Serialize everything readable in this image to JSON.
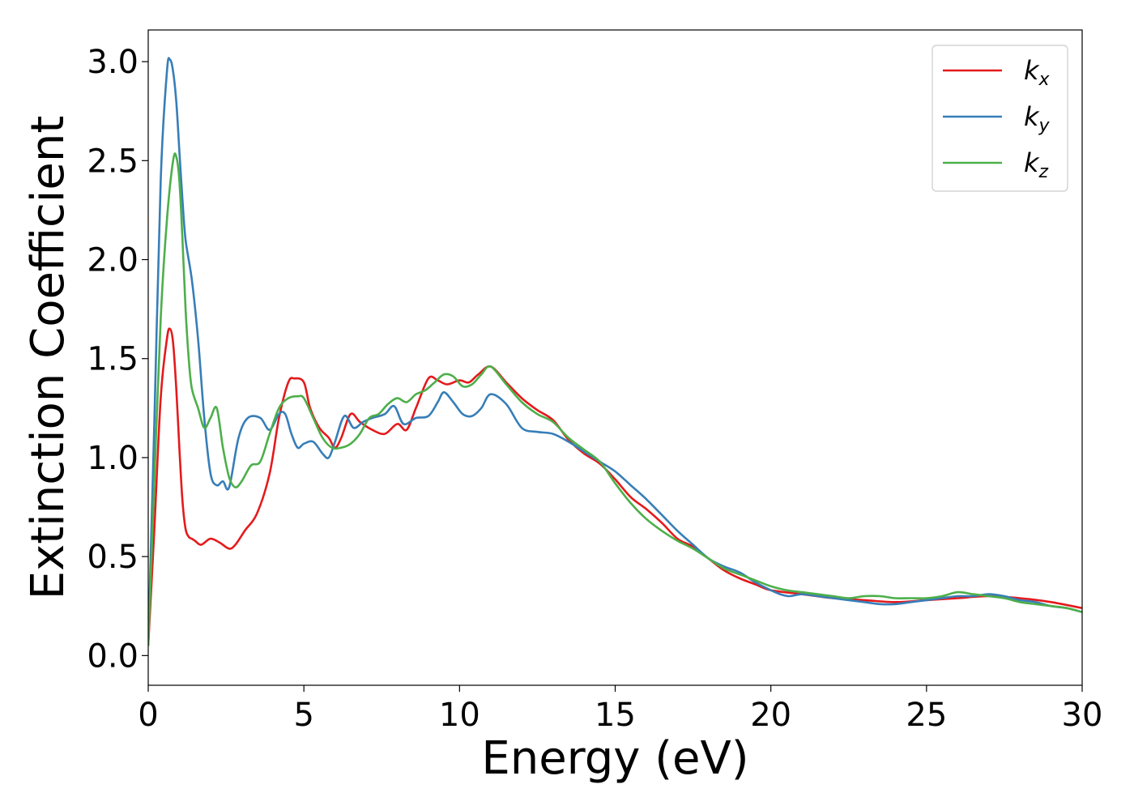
{
  "chart_data": {
    "type": "line",
    "title": "",
    "xlabel": "Energy (eV)",
    "ylabel": "Extinction Coefficient",
    "xlim": [
      0,
      30
    ],
    "ylim": [
      -0.15,
      3.16
    ],
    "xticks": [
      0,
      5,
      10,
      15,
      20,
      25,
      30
    ],
    "xtick_labels": [
      "0",
      "5",
      "10",
      "15",
      "20",
      "25",
      "30"
    ],
    "yticks": [
      0.0,
      0.5,
      1.0,
      1.5,
      2.0,
      2.5,
      3.0
    ],
    "ytick_labels": [
      "0.0",
      "0.5",
      "1.0",
      "1.5",
      "2.0",
      "2.5",
      "3.0"
    ],
    "grid": false,
    "legend_position": "top-right",
    "series": [
      {
        "name": "k",
        "subscript": "x",
        "color": "#e41a1c",
        "x": [
          0,
          0.2,
          0.4,
          0.6,
          0.7,
          0.8,
          0.9,
          1.0,
          1.1,
          1.2,
          1.3,
          1.4,
          1.5,
          1.7,
          2.0,
          2.3,
          2.6,
          2.8,
          3.1,
          3.5,
          3.9,
          4.2,
          4.5,
          4.7,
          5.0,
          5.2,
          5.5,
          5.8,
          6.0,
          6.2,
          6.5,
          6.8,
          7.2,
          7.6,
          8.0,
          8.3,
          8.6,
          9.0,
          9.3,
          9.6,
          10.0,
          10.3,
          10.6,
          11.0,
          11.5,
          12.0,
          12.5,
          13.0,
          13.5,
          14.0,
          14.5,
          15.0,
          15.5,
          16.0,
          16.5,
          17.0,
          17.5,
          18.0,
          18.5,
          19.0,
          19.5,
          20.0,
          21.0,
          22.0,
          23.0,
          24.0,
          25.0,
          26.0,
          27.0,
          28.0,
          29.0,
          30.0
        ],
        "y": [
          0.05,
          0.65,
          1.3,
          1.6,
          1.65,
          1.58,
          1.35,
          1.05,
          0.78,
          0.64,
          0.6,
          0.59,
          0.58,
          0.56,
          0.59,
          0.57,
          0.54,
          0.56,
          0.63,
          0.72,
          0.92,
          1.2,
          1.38,
          1.4,
          1.38,
          1.25,
          1.15,
          1.1,
          1.05,
          1.1,
          1.22,
          1.18,
          1.14,
          1.12,
          1.17,
          1.14,
          1.25,
          1.4,
          1.39,
          1.37,
          1.39,
          1.38,
          1.42,
          1.46,
          1.38,
          1.3,
          1.24,
          1.19,
          1.09,
          1.02,
          0.97,
          0.89,
          0.8,
          0.74,
          0.67,
          0.59,
          0.55,
          0.49,
          0.43,
          0.39,
          0.36,
          0.33,
          0.31,
          0.29,
          0.28,
          0.27,
          0.28,
          0.29,
          0.3,
          0.29,
          0.27,
          0.24
        ]
      },
      {
        "name": "k",
        "subscript": "y",
        "color": "#377eb8",
        "x": [
          0,
          0.2,
          0.4,
          0.6,
          0.7,
          0.8,
          0.9,
          1.0,
          1.1,
          1.2,
          1.4,
          1.6,
          1.8,
          2.0,
          2.2,
          2.4,
          2.6,
          2.9,
          3.2,
          3.6,
          3.9,
          4.2,
          4.4,
          4.6,
          4.8,
          5.0,
          5.3,
          5.6,
          5.8,
          6.0,
          6.3,
          6.6,
          6.9,
          7.2,
          7.6,
          7.9,
          8.2,
          8.6,
          9.0,
          9.3,
          9.5,
          9.8,
          10.1,
          10.4,
          10.7,
          11.0,
          11.5,
          12.0,
          12.5,
          13.0,
          13.5,
          14.0,
          14.5,
          15.0,
          15.5,
          16.0,
          16.5,
          17.0,
          17.5,
          18.0,
          18.5,
          19.0,
          19.5,
          20.0,
          20.3,
          20.6,
          21.0,
          21.5,
          22.0,
          22.5,
          23.0,
          23.5,
          24.0,
          24.5,
          25.0,
          25.5,
          26.0,
          26.5,
          27.0,
          27.5,
          28.0,
          28.5,
          29.0,
          29.5,
          30.0
        ],
        "y": [
          0.05,
          1.2,
          2.4,
          2.95,
          3.01,
          2.95,
          2.8,
          2.55,
          2.3,
          2.1,
          1.9,
          1.6,
          1.2,
          0.92,
          0.86,
          0.88,
          0.85,
          1.1,
          1.2,
          1.2,
          1.14,
          1.22,
          1.22,
          1.12,
          1.05,
          1.07,
          1.08,
          1.02,
          1.0,
          1.08,
          1.21,
          1.15,
          1.18,
          1.2,
          1.22,
          1.26,
          1.17,
          1.2,
          1.21,
          1.28,
          1.33,
          1.28,
          1.22,
          1.21,
          1.25,
          1.32,
          1.27,
          1.15,
          1.13,
          1.12,
          1.08,
          1.03,
          0.98,
          0.93,
          0.86,
          0.79,
          0.71,
          0.63,
          0.56,
          0.49,
          0.45,
          0.42,
          0.37,
          0.33,
          0.31,
          0.3,
          0.31,
          0.3,
          0.29,
          0.28,
          0.27,
          0.26,
          0.26,
          0.27,
          0.28,
          0.29,
          0.3,
          0.3,
          0.31,
          0.3,
          0.28,
          0.27,
          0.25,
          0.24,
          0.22
        ]
      },
      {
        "name": "k",
        "subscript": "z",
        "color": "#4daf4a",
        "x": [
          0,
          0.2,
          0.4,
          0.6,
          0.8,
          0.9,
          1.0,
          1.1,
          1.2,
          1.3,
          1.4,
          1.6,
          1.8,
          2.0,
          2.2,
          2.4,
          2.6,
          2.8,
          3.0,
          3.3,
          3.6,
          3.9,
          4.2,
          4.5,
          4.8,
          5.0,
          5.3,
          5.6,
          5.9,
          6.2,
          6.5,
          6.8,
          7.1,
          7.4,
          7.7,
          8.0,
          8.3,
          8.6,
          8.9,
          9.2,
          9.5,
          9.8,
          10.1,
          10.4,
          10.7,
          11.0,
          11.5,
          12.0,
          12.5,
          13.0,
          13.5,
          14.0,
          14.5,
          15.0,
          15.5,
          16.0,
          16.5,
          17.0,
          17.5,
          18.0,
          18.5,
          19.0,
          19.5,
          20.0,
          20.5,
          21.0,
          21.5,
          22.0,
          22.5,
          23.0,
          23.5,
          24.0,
          24.5,
          25.0,
          25.5,
          26.0,
          26.5,
          27.0,
          27.5,
          28.0,
          28.5,
          29.0,
          29.5,
          30.0
        ],
        "y": [
          0.05,
          0.9,
          1.7,
          2.2,
          2.5,
          2.52,
          2.4,
          2.1,
          1.75,
          1.5,
          1.35,
          1.25,
          1.15,
          1.2,
          1.25,
          1.05,
          0.9,
          0.85,
          0.88,
          0.96,
          0.98,
          1.12,
          1.25,
          1.3,
          1.31,
          1.3,
          1.2,
          1.1,
          1.05,
          1.05,
          1.07,
          1.12,
          1.2,
          1.22,
          1.27,
          1.3,
          1.28,
          1.32,
          1.34,
          1.38,
          1.42,
          1.41,
          1.36,
          1.37,
          1.42,
          1.46,
          1.37,
          1.28,
          1.22,
          1.18,
          1.1,
          1.04,
          0.98,
          0.87,
          0.77,
          0.69,
          0.63,
          0.58,
          0.54,
          0.49,
          0.44,
          0.41,
          0.38,
          0.35,
          0.33,
          0.32,
          0.31,
          0.3,
          0.29,
          0.3,
          0.3,
          0.29,
          0.29,
          0.29,
          0.3,
          0.32,
          0.31,
          0.3,
          0.29,
          0.27,
          0.26,
          0.25,
          0.24,
          0.22
        ]
      }
    ]
  }
}
